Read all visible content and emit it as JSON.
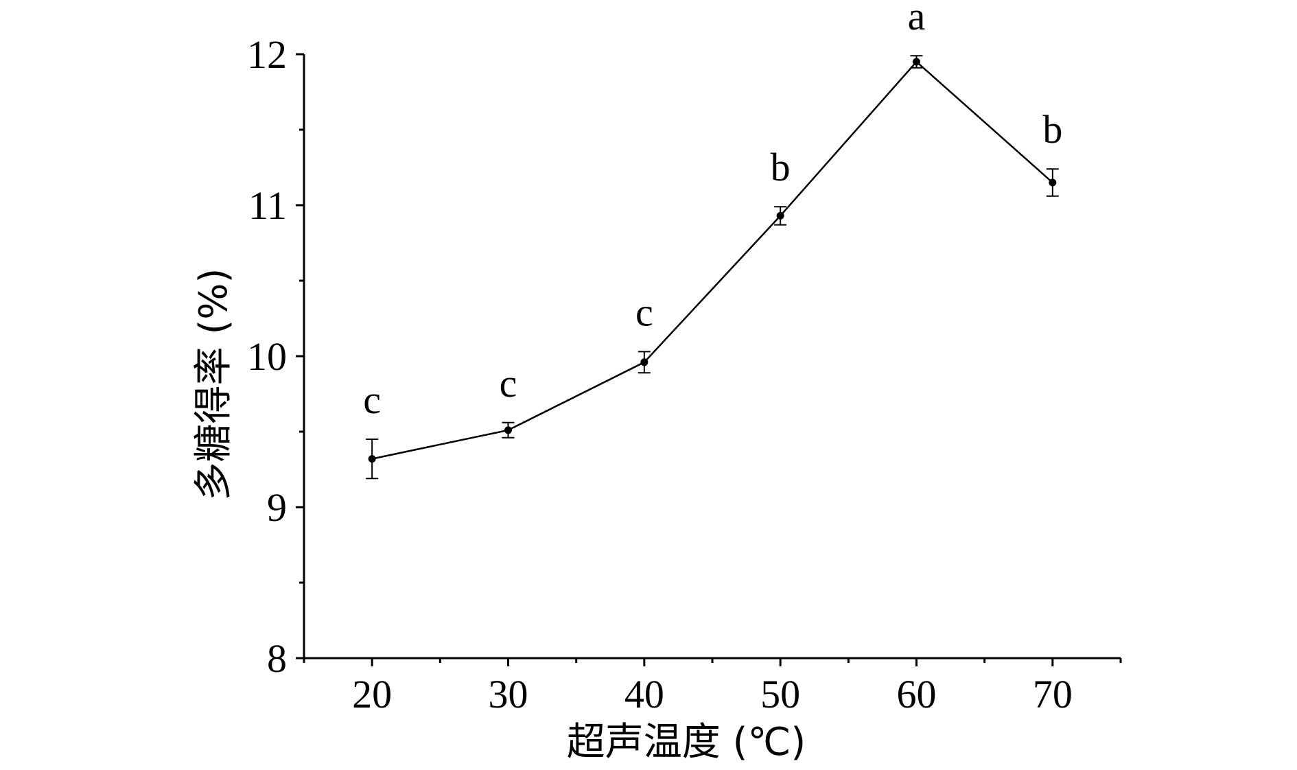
{
  "chart_data": {
    "type": "line",
    "xlabel": "超声温度 (℃)",
    "ylabel": "多糖得率 (%)",
    "xlim": [
      15,
      75
    ],
    "ylim": [
      8,
      12
    ],
    "x_ticks": [
      20,
      30,
      40,
      50,
      60,
      70
    ],
    "y_ticks": [
      8,
      9,
      10,
      11,
      12
    ],
    "x_minor_ticks": [
      15,
      25,
      35,
      45,
      55,
      65,
      75
    ],
    "y_minor_ticks": [
      8.5,
      9.5,
      10.5,
      11.5
    ],
    "grid": false,
    "series": [
      {
        "x": [
          20,
          30,
          40,
          50,
          60,
          70
        ],
        "y": [
          9.32,
          9.51,
          9.96,
          10.93,
          11.95,
          11.15
        ],
        "error": [
          0.13,
          0.05,
          0.07,
          0.06,
          0.04,
          0.09
        ],
        "significance": [
          "c",
          "c",
          "c",
          "b",
          "a",
          "b"
        ],
        "color": "#000000"
      }
    ]
  }
}
